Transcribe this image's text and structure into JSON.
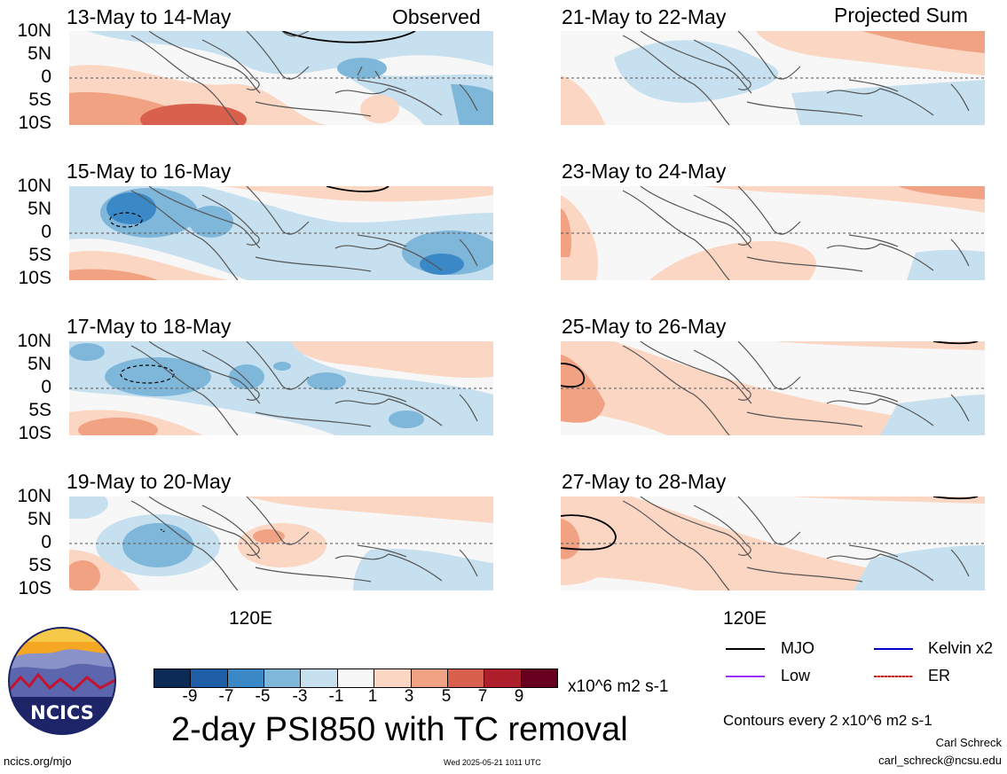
{
  "header": {
    "left_tag": "Observed",
    "right_tag": "Projected Sum"
  },
  "panels_left": [
    {
      "title": "13-May to 14-May"
    },
    {
      "title": "15-May to 16-May"
    },
    {
      "title": "17-May to 18-May"
    },
    {
      "title": "19-May to 20-May"
    }
  ],
  "panels_right": [
    {
      "title": "21-May to 22-May"
    },
    {
      "title": "23-May to 24-May"
    },
    {
      "title": "25-May to 26-May"
    },
    {
      "title": "27-May to 28-May"
    }
  ],
  "axis": {
    "lat_labels": [
      "10N",
      "5N",
      "0",
      "5S",
      "10S"
    ],
    "lon_label": "120E"
  },
  "colorbar": {
    "labels": [
      "-9",
      "-7",
      "-5",
      "-3",
      "-1",
      "1",
      "3",
      "5",
      "7",
      "9"
    ],
    "units": "x10^6 m2 s-1",
    "colors": [
      "#0b2a55",
      "#1f5fa8",
      "#3b88c6",
      "#7fb7da",
      "#c6e0ef",
      "#f7f7f7",
      "#fbd6c3",
      "#f0a283",
      "#d8604c",
      "#ad1f2b",
      "#67001f"
    ]
  },
  "title": "2-day PSI850 with TC removal",
  "legend": {
    "items": [
      {
        "label": "MJO",
        "color": "#000000"
      },
      {
        "label": "Kelvin x2",
        "color": "#0000cc"
      },
      {
        "label": "Low",
        "color": "#9b30ff"
      },
      {
        "label": "ER",
        "color": "#cc1111"
      }
    ],
    "contour_note": "Contours every 2 x10^6 m2 s-1"
  },
  "logo": {
    "text": "NCICS"
  },
  "footer": {
    "url": "ncics.org/mjo",
    "timestamp": "Wed 2025-05-21 1011 UTC",
    "author": "Carl Schreck",
    "email": "carl_schreck@ncsu.edu"
  }
}
